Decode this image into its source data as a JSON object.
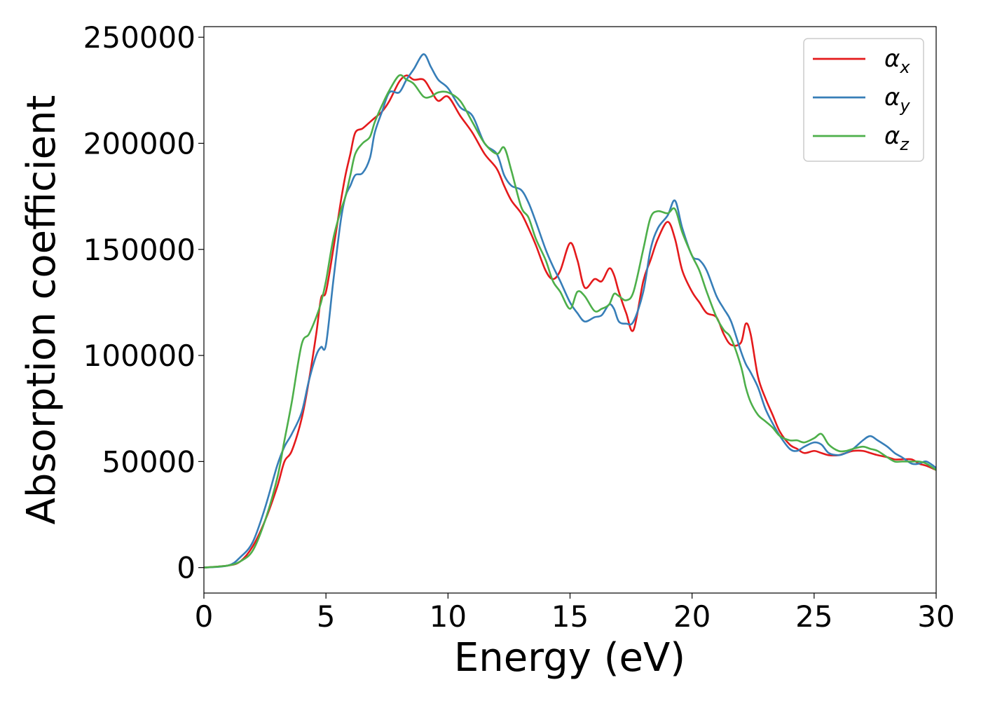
{
  "chart_data": {
    "type": "line",
    "title": "",
    "xlabel": "Energy (eV)",
    "ylabel": "Absorption coefficient",
    "xlim": [
      0,
      30
    ],
    "ylim": [
      -12000,
      255000
    ],
    "xticks": [
      0,
      5,
      10,
      15,
      20,
      25,
      30
    ],
    "xtick_labels": [
      "0",
      "5",
      "10",
      "15",
      "20",
      "25",
      "30"
    ],
    "yticks": [
      0,
      50000,
      100000,
      150000,
      200000,
      250000
    ],
    "ytick_labels": [
      "0",
      "50000",
      "100000",
      "150000",
      "200000",
      "250000"
    ],
    "grid": false,
    "legend": "top-right",
    "series": [
      {
        "name": "αx",
        "symbol": "α",
        "subscript": "x",
        "color": "#e41a1c",
        "x": [
          0,
          1,
          1.5,
          2,
          2.5,
          3,
          3.3,
          3.6,
          4,
          4.3,
          4.6,
          4.8,
          5,
          5.3,
          5.6,
          5.8,
          6,
          6.2,
          6.5,
          6.8,
          7,
          7.3,
          7.6,
          8,
          8.3,
          8.6,
          9,
          9.3,
          9.6,
          10,
          10.5,
          11,
          11.5,
          12,
          12.3,
          12.6,
          13,
          13.3,
          13.6,
          14,
          14.3,
          14.6,
          15,
          15.3,
          15.6,
          16,
          16.3,
          16.6,
          16.8,
          17,
          17.3,
          17.6,
          18,
          18.3,
          18.6,
          19,
          19.3,
          19.6,
          20,
          20.3,
          20.6,
          21,
          21.3,
          21.6,
          22,
          22.2,
          22.4,
          22.7,
          23,
          23.3,
          23.6,
          24,
          24.3,
          24.6,
          25,
          25.3,
          25.6,
          26,
          26.3,
          26.6,
          27,
          27.3,
          27.6,
          28,
          28.3,
          28.6,
          29,
          29.3,
          29.6,
          30
        ],
        "y": [
          0,
          1000,
          3000,
          10000,
          22000,
          38000,
          50000,
          55000,
          70000,
          88000,
          110000,
          127000,
          130000,
          150000,
          172000,
          185000,
          195000,
          205000,
          207000,
          210000,
          212000,
          215000,
          220000,
          229000,
          232000,
          230000,
          230000,
          225000,
          220000,
          222000,
          213000,
          205000,
          195000,
          188000,
          180000,
          173000,
          167000,
          160000,
          152000,
          140000,
          136000,
          140000,
          153000,
          145000,
          132000,
          136000,
          135000,
          141000,
          138000,
          130000,
          120000,
          112000,
          135000,
          145000,
          155000,
          163000,
          155000,
          140000,
          130000,
          125000,
          120000,
          118000,
          110000,
          105000,
          106000,
          115000,
          110000,
          90000,
          80000,
          72000,
          64000,
          58000,
          56000,
          54000,
          55000,
          54000,
          53000,
          53000,
          54000,
          55000,
          55000,
          54000,
          53000,
          52000,
          51000,
          51000,
          51000,
          49000,
          48000,
          46000
        ]
      },
      {
        "name": "αy",
        "symbol": "α",
        "subscript": "y",
        "color": "#377eb8",
        "x": [
          0,
          1,
          1.5,
          2,
          2.5,
          3,
          3.3,
          3.6,
          4,
          4.3,
          4.6,
          4.8,
          5,
          5.3,
          5.6,
          5.8,
          6,
          6.2,
          6.5,
          6.8,
          7,
          7.3,
          7.6,
          8,
          8.3,
          8.6,
          9,
          9.3,
          9.6,
          10,
          10.5,
          11,
          11.5,
          12,
          12.3,
          12.6,
          13,
          13.3,
          13.6,
          14,
          14.3,
          14.6,
          15,
          15.3,
          15.6,
          16,
          16.3,
          16.6,
          16.8,
          17,
          17.3,
          17.6,
          18,
          18.3,
          18.6,
          19,
          19.3,
          19.6,
          20,
          20.3,
          20.6,
          21,
          21.3,
          21.6,
          22,
          22.2,
          22.4,
          22.7,
          23,
          23.3,
          23.6,
          24,
          24.3,
          24.6,
          25,
          25.3,
          25.6,
          26,
          26.3,
          26.6,
          27,
          27.3,
          27.6,
          28,
          28.3,
          28.6,
          29,
          29.3,
          29.6,
          30
        ],
        "y": [
          0,
          1000,
          5000,
          12000,
          28000,
          48000,
          57000,
          63000,
          73000,
          88000,
          100000,
          104000,
          105000,
          135000,
          163000,
          175000,
          180000,
          185000,
          186000,
          193000,
          205000,
          215000,
          224000,
          224000,
          230000,
          235000,
          242000,
          236000,
          230000,
          226000,
          217000,
          213000,
          200000,
          195000,
          185000,
          180000,
          178000,
          172000,
          163000,
          150000,
          142000,
          135000,
          125000,
          120000,
          116000,
          118000,
          119000,
          124000,
          122000,
          116000,
          115000,
          116000,
          130000,
          150000,
          160000,
          166000,
          173000,
          160000,
          147000,
          145000,
          140000,
          128000,
          122000,
          116000,
          102000,
          96000,
          92000,
          85000,
          75000,
          68000,
          62000,
          56000,
          55000,
          57000,
          59000,
          58000,
          54000,
          53000,
          54000,
          56000,
          60000,
          62000,
          60000,
          57000,
          54000,
          52000,
          49000,
          49000,
          50000,
          47000
        ]
      },
      {
        "name": "αz",
        "symbol": "α",
        "subscript": "z",
        "color": "#4daf4a",
        "x": [
          0,
          1,
          1.5,
          2,
          2.5,
          3,
          3.3,
          3.6,
          4,
          4.3,
          4.6,
          4.8,
          5,
          5.3,
          5.6,
          5.8,
          6,
          6.2,
          6.5,
          6.8,
          7,
          7.3,
          7.6,
          8,
          8.3,
          8.6,
          9,
          9.3,
          9.6,
          10,
          10.5,
          11,
          11.5,
          12,
          12.3,
          12.6,
          13,
          13.3,
          13.6,
          14,
          14.3,
          14.6,
          15,
          15.3,
          15.6,
          16,
          16.3,
          16.6,
          16.8,
          17,
          17.3,
          17.6,
          18,
          18.3,
          18.6,
          19,
          19.3,
          19.6,
          20,
          20.3,
          20.6,
          21,
          21.3,
          21.6,
          22,
          22.2,
          22.4,
          22.7,
          23,
          23.3,
          23.6,
          24,
          24.3,
          24.6,
          25,
          25.3,
          25.6,
          26,
          26.3,
          26.6,
          27,
          27.3,
          27.6,
          28,
          28.3,
          28.6,
          29,
          29.3,
          29.6,
          30
        ],
        "y": [
          0,
          1000,
          3000,
          8000,
          22000,
          42000,
          60000,
          78000,
          105000,
          110000,
          118000,
          125000,
          135000,
          155000,
          168000,
          175000,
          185000,
          195000,
          200000,
          203000,
          210000,
          218000,
          225000,
          232000,
          230000,
          228000,
          222000,
          222000,
          224000,
          224000,
          220000,
          210000,
          200000,
          195000,
          198000,
          187000,
          170000,
          165000,
          155000,
          145000,
          135000,
          130000,
          122000,
          130000,
          128000,
          121000,
          122000,
          124000,
          129000,
          128000,
          126000,
          130000,
          150000,
          165000,
          168000,
          167000,
          169000,
          158000,
          147000,
          140000,
          130000,
          118000,
          112000,
          108000,
          95000,
          85000,
          78000,
          72000,
          69000,
          66000,
          62000,
          60000,
          60000,
          59000,
          61000,
          63000,
          58000,
          55000,
          55000,
          56000,
          57000,
          56000,
          55000,
          52000,
          50000,
          50000,
          50000,
          50000,
          49000,
          46000
        ]
      }
    ]
  }
}
